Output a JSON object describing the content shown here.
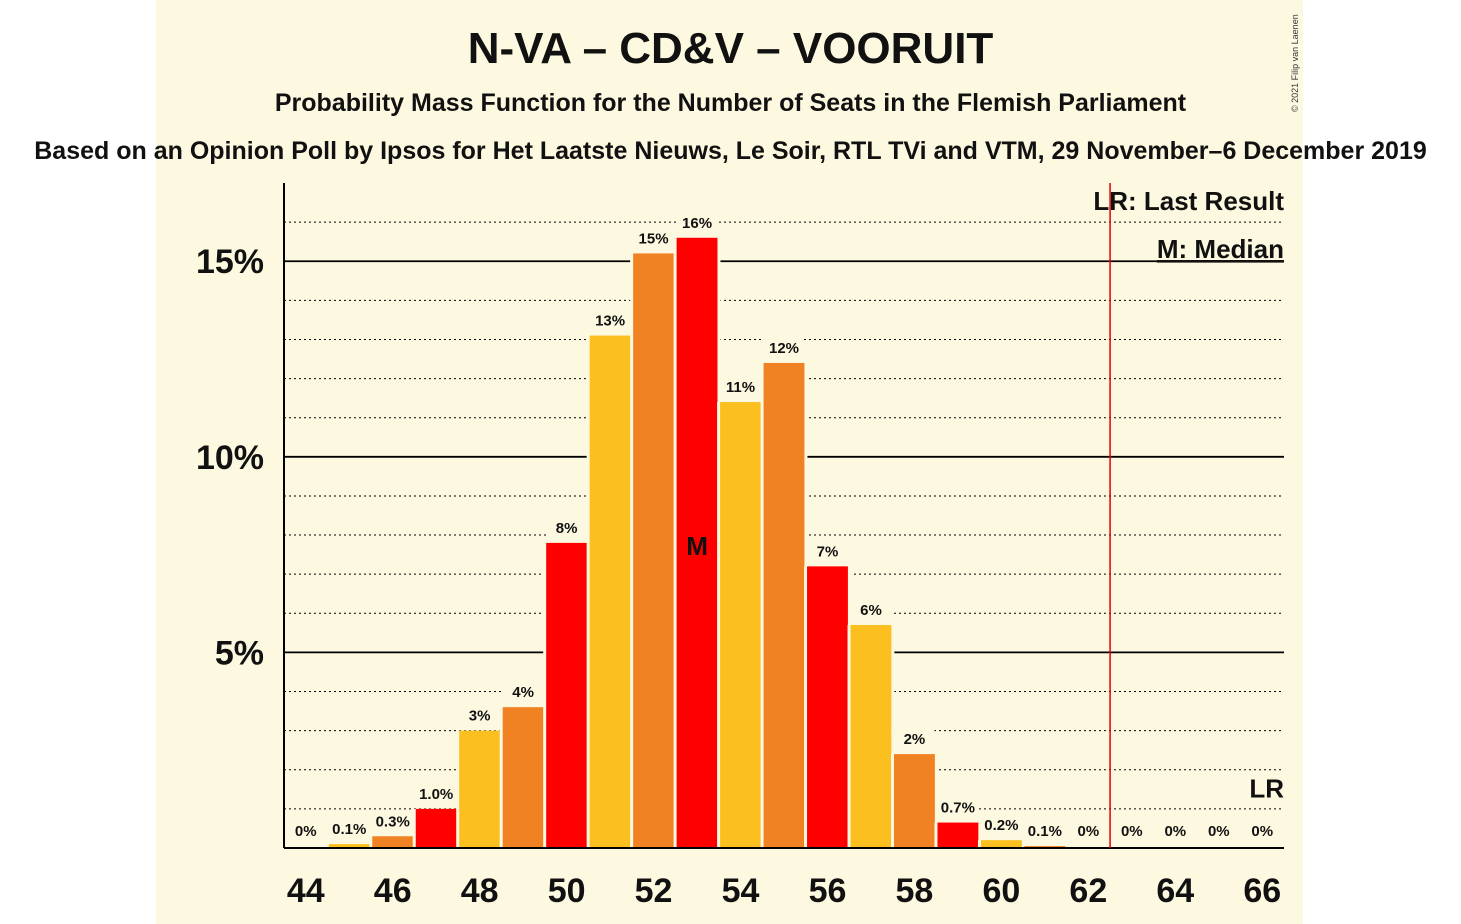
{
  "title": "N-VA – CD&V – VOORUIT",
  "subtitle": "Probability Mass Function for the Number of Seats in the Flemish Parliament",
  "source": "Based on an Opinion Poll by Ipsos for Het Laatste Nieuws, Le Soir, RTL TVi and VTM, 29 November–6 December 2019",
  "copyright": "© 2021 Filip van Laenen",
  "legend": {
    "last_result": "LR: Last Result",
    "median": "M: Median",
    "lr_marker": "LR",
    "median_marker": "M"
  },
  "colors": {
    "background": "#fdf9e0",
    "red": "#ff0000",
    "orange": "#f18224",
    "yellow": "#fbbf1f",
    "last_result_line": "#e00000"
  },
  "chart_data": {
    "type": "bar",
    "x": [
      44,
      45,
      46,
      47,
      48,
      49,
      50,
      51,
      52,
      53,
      54,
      55,
      56,
      57,
      58,
      59,
      60,
      61,
      62,
      63,
      64,
      65,
      66
    ],
    "values": [
      0,
      0.1,
      0.3,
      1.0,
      3.0,
      3.6,
      7.8,
      13.1,
      15.2,
      15.6,
      11.4,
      12.4,
      7.2,
      5.7,
      2.4,
      0.65,
      0.2,
      0.05,
      0.02,
      0.01,
      0,
      0,
      0
    ],
    "labels": [
      "0%",
      "0.1%",
      "0.3%",
      "1.0%",
      "3%",
      "4%",
      "8%",
      "13%",
      "15%",
      "16%",
      "11%",
      "12%",
      "7%",
      "6%",
      "2%",
      "0.7%",
      "0.2%",
      "0.1%",
      "0%",
      "0%",
      "0%",
      "0%",
      "0%"
    ],
    "bar_colors": [
      "red",
      "yellow",
      "orange",
      "red",
      "yellow",
      "orange",
      "red",
      "yellow",
      "orange",
      "red",
      "yellow",
      "orange",
      "red",
      "yellow",
      "orange",
      "red",
      "yellow",
      "orange",
      "red",
      "yellow",
      "orange",
      "red",
      "yellow"
    ],
    "xticks": [
      44,
      46,
      48,
      50,
      52,
      54,
      56,
      58,
      60,
      62,
      64,
      66
    ],
    "yticks": [
      5,
      10,
      15
    ],
    "ytick_labels": [
      "5%",
      "10%",
      "15%"
    ],
    "ylim": [
      0,
      17
    ],
    "xlim": [
      43.5,
      66.5
    ],
    "median": 53,
    "last_result": 62.5,
    "grid": "major solid, minor dotted every 1%"
  }
}
